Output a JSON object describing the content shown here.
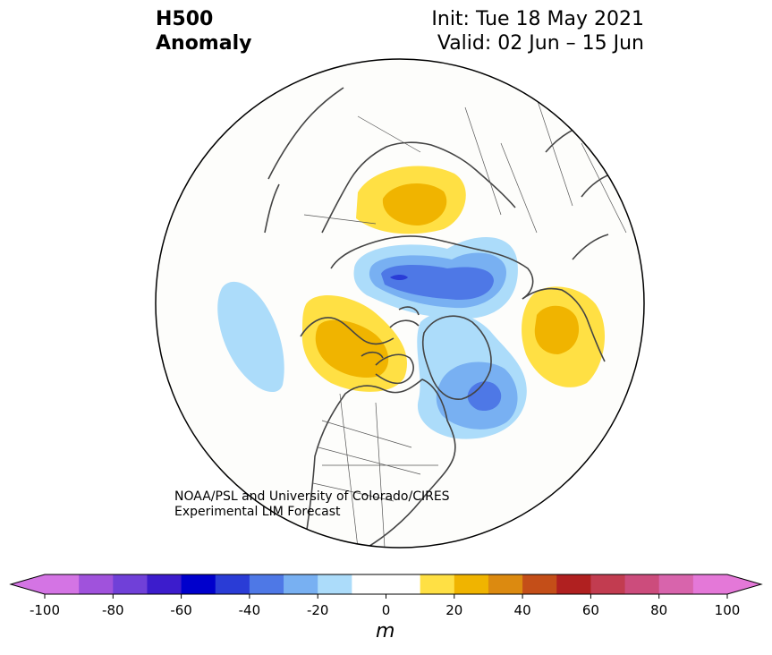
{
  "header": {
    "title_line1": "H500",
    "title_line2": "Anomaly",
    "init": "Init: Tue 18 May 2021",
    "valid": "Valid: 02 Jun – 15 Jun"
  },
  "credit": {
    "line1": "NOAA/PSL and University of Colorado/CIRES",
    "line2": "Experimental LIM Forecast"
  },
  "colorbar": {
    "units": "m",
    "tick_labels": [
      "-100",
      "-80",
      "-60",
      "-40",
      "-20",
      "0",
      "20",
      "40",
      "60",
      "80",
      "100"
    ],
    "ticks": [
      -100,
      -80,
      -60,
      -40,
      -20,
      0,
      20,
      40,
      60,
      80,
      100
    ],
    "range": [
      -100,
      100
    ],
    "step": 10,
    "colors": [
      "#d474e4",
      "#a052dc",
      "#7040d8",
      "#3c1ccc",
      "#0000cc",
      "#2a3cd6",
      "#4e78e6",
      "#78b0f2",
      "#acdcfa",
      "#ffffff",
      "#ffffff",
      "#ffe044",
      "#f0b400",
      "#dc8a10",
      "#c44e18",
      "#b02020",
      "#c23c50",
      "#cc4c7c",
      "#d864ac",
      "#e478d8"
    ],
    "extend_low_color": "#d474e4",
    "extend_high_color": "#e478d8"
  },
  "map": {
    "projection": "north-polar-stereographic",
    "background": "#fdfdfb",
    "coastline_color": "#444444",
    "anomaly_centers": [
      {
        "region": "Barents/Kara Sea",
        "sign": "positive",
        "peak_m": 30
      },
      {
        "region": "Central Siberia",
        "sign": "negative",
        "peak_m": -50
      },
      {
        "region": "Western Europe",
        "sign": "positive",
        "peak_m": 30
      },
      {
        "region": "Hudson Bay",
        "sign": "negative",
        "peak_m": -40
      },
      {
        "region": "Bering Sea / Alaska",
        "sign": "positive",
        "peak_m": 30
      },
      {
        "region": "North Pacific",
        "sign": "negative",
        "peak_m": -20
      }
    ]
  }
}
